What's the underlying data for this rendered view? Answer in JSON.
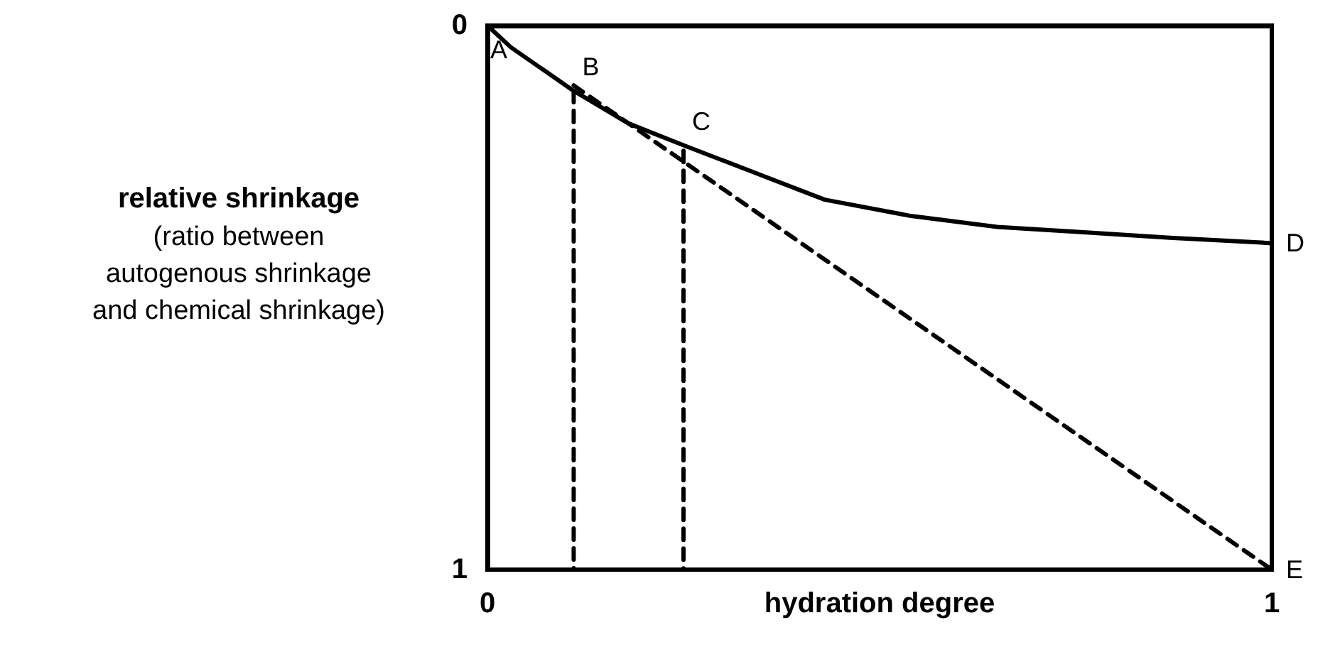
{
  "chart_data": {
    "type": "line",
    "xlabel": "hydration degree",
    "ylabel": "relative shrinkage\n(ratio between\nautogenous shrinkage\nand chemical shrinkage)",
    "xlim": [
      0,
      1
    ],
    "ylim": [
      1,
      0
    ],
    "xticks": [
      0,
      1
    ],
    "yticks": [
      0,
      1
    ],
    "grid": false,
    "marker": "none",
    "series": [
      {
        "color": "#000000",
        "line_style": "solid",
        "x": [
          0,
          0.03,
          0.07,
          0.11,
          0.18,
          0.25,
          0.34,
          0.43,
          0.54,
          0.65,
          0.76,
          0.87,
          1
        ],
        "values": [
          0,
          0.04,
          0.08,
          0.12,
          0.18,
          0.22,
          0.27,
          0.32,
          0.35,
          0.37,
          0.38,
          0.39,
          0.4
        ]
      },
      {
        "color": "#000000",
        "line_style": "dashed",
        "x": [
          0.11,
          1
        ],
        "values": [
          0.11,
          1
        ]
      },
      {
        "color": "#000000",
        "line_style": "dashed",
        "x": [
          0.11,
          0.11
        ],
        "values": [
          0.12,
          1
        ]
      },
      {
        "color": "#000000",
        "line_style": "dashed",
        "x": [
          0.25,
          0.25
        ],
        "values": [
          0.23,
          1
        ]
      }
    ],
    "annotations": [
      {
        "text": "A",
        "x": 0,
        "y": 0
      },
      {
        "text": "B",
        "x": 0.11,
        "y": 0.12
      },
      {
        "text": "C",
        "x": 0.25,
        "y": 0.22
      },
      {
        "text": "D",
        "x": 1,
        "y": 0.4
      },
      {
        "text": "E",
        "x": 1,
        "y": 1
      }
    ]
  }
}
